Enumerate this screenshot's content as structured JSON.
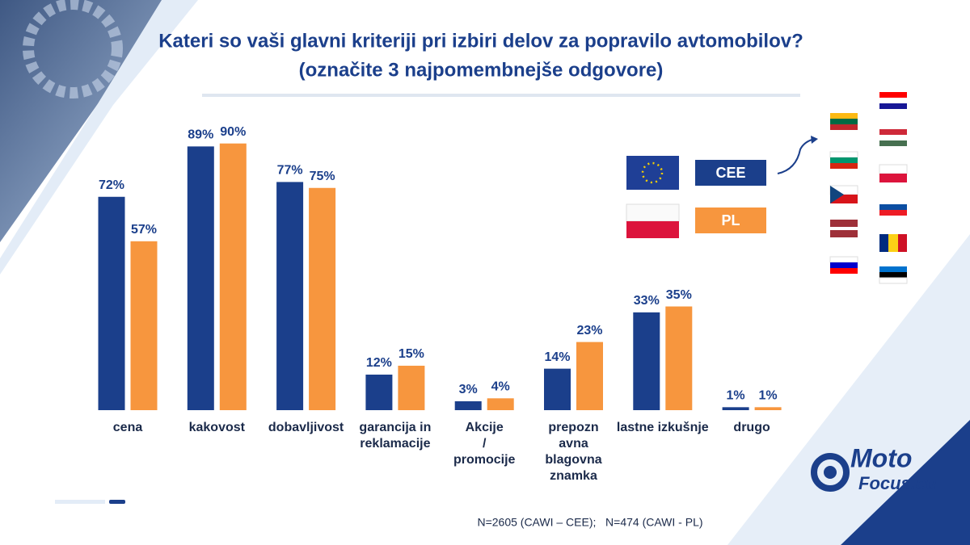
{
  "title": "Kateri so vaši glavni kriteriji pri izbiri delov za popravilo avtomobilov?",
  "subtitle": "(označite 3 najpomembnejše odgovore)",
  "footnote": "N=2605 (CAWI – CEE);   N=474 (CAWI - PL)",
  "logo": {
    "line1": "Moto",
    "line2": "Focus.eu"
  },
  "chart_data": {
    "type": "bar",
    "categories": [
      "cena",
      "kakovost",
      "dobavljivost",
      "garancija in reklamacije",
      "Akcije / promocije",
      "prepozn avna blagovna znamka",
      "lastne izkušnje",
      "drugo"
    ],
    "series": [
      {
        "name": "CEE",
        "color": "#1b3f8b",
        "values": [
          72,
          89,
          77,
          12,
          3,
          14,
          33,
          1
        ],
        "value_labels": [
          "72%",
          "89%",
          "77%",
          "12%",
          "3%",
          "14%",
          "33%",
          "1%"
        ]
      },
      {
        "name": "PL",
        "color": "#f7963e",
        "values": [
          57,
          90,
          75,
          15,
          4,
          23,
          35,
          1
        ],
        "value_labels": [
          "57%",
          "90%",
          "75%",
          "15%",
          "4%",
          "23%",
          "35%",
          "1%"
        ]
      }
    ]
  }
}
